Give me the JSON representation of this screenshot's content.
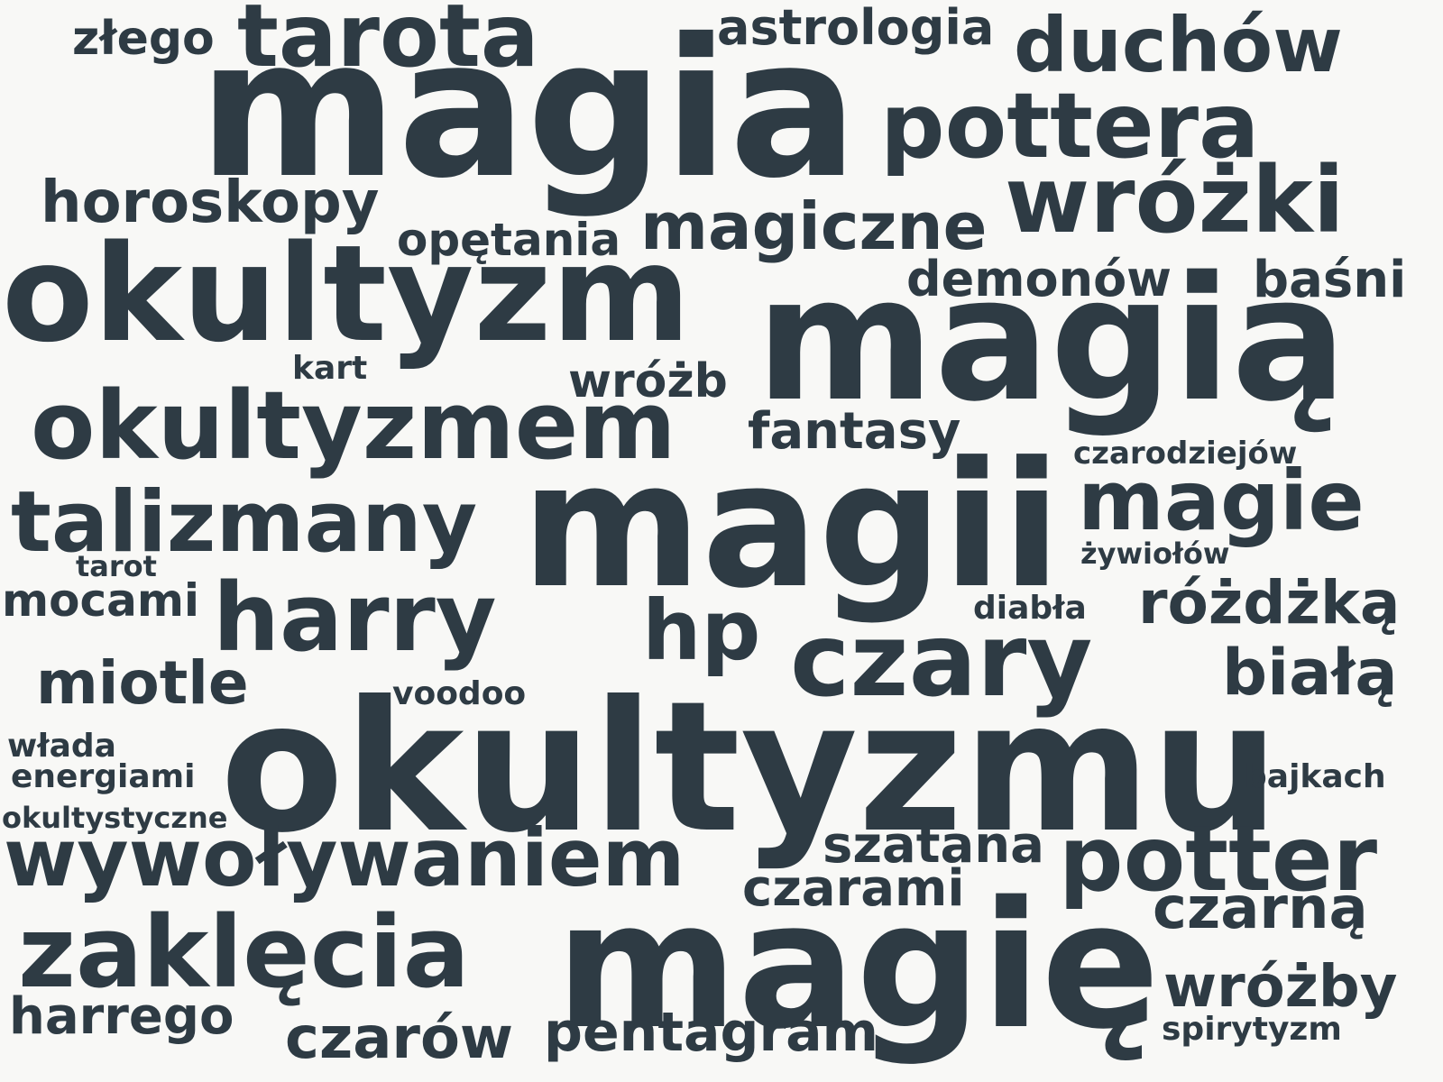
{
  "colors": {
    "background": "#f8f8f6",
    "text": "#2e3b44"
  },
  "words": {
    "w01": "złego",
    "w02": "tarota",
    "w03": "astrologia",
    "w04": "duchów",
    "w05": "magia",
    "w06": "pottera",
    "w07": "wróżki",
    "w08": "horoskopy",
    "w09": "opętania",
    "w10": "magiczne",
    "w11": "okultyzm",
    "w12": "demonów",
    "w13": "baśni",
    "w14": "magią",
    "w15": "kart",
    "w16": "wróżb",
    "w17": "okultyzmem",
    "w18": "fantasy",
    "w19": "czarodziejów",
    "w20": "magii",
    "w21": "magie",
    "w22": "talizmany",
    "w23": "żywiołów",
    "w24": "tarot",
    "w25": "mocami",
    "w26": "harry",
    "w27": "hp",
    "w28": "diabła",
    "w29": "różdżką",
    "w30": "czary",
    "w31": "miotle",
    "w32": "białą",
    "w33": "voodoo",
    "w34": "włada",
    "w35": "okultyzmu",
    "w36": "energiami",
    "w37": "bajkach",
    "w38": "okultystyczne",
    "w39": "wywoływaniem",
    "w40": "szatana",
    "w41": "potter",
    "w42": "czarami",
    "w43": "czarną",
    "w44": "zaklęcia",
    "w45": "magię",
    "w46": "wróżby",
    "w47": "harrego",
    "w48": "pentagram",
    "w49": "spirytyzm",
    "w50": "czarów"
  }
}
